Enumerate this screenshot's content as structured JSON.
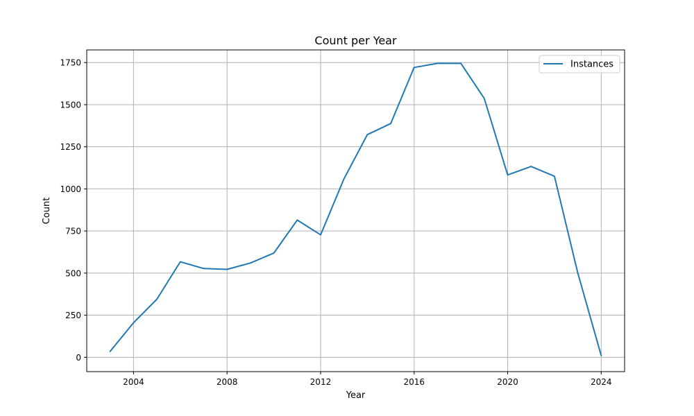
{
  "chart_data": {
    "type": "line",
    "title": "Count per Year",
    "xlabel": "Year",
    "ylabel": "Count",
    "xlim": [
      2002,
      2025
    ],
    "ylim": [
      -85,
      1825
    ],
    "xticks": [
      2004,
      2008,
      2012,
      2016,
      2020,
      2024
    ],
    "yticks": [
      0,
      250,
      500,
      750,
      1000,
      1250,
      1500,
      1750
    ],
    "grid": true,
    "legend_position": "top-right",
    "series": [
      {
        "name": "Instances",
        "color": "#1f77b4",
        "x": [
          2003,
          2004,
          2005,
          2006,
          2007,
          2008,
          2009,
          2010,
          2011,
          2012,
          2013,
          2014,
          2015,
          2016,
          2017,
          2018,
          2019,
          2020,
          2021,
          2022,
          2023,
          2024
        ],
        "values": [
          35,
          205,
          345,
          567,
          527,
          522,
          560,
          619,
          815,
          727,
          1060,
          1322,
          1388,
          1721,
          1745,
          1745,
          1537,
          1083,
          1133,
          1075,
          500,
          10
        ]
      }
    ]
  }
}
